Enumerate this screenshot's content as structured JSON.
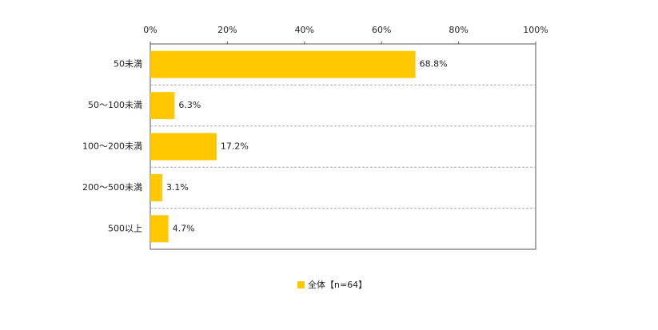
{
  "chart_data": {
    "type": "bar",
    "orientation": "horizontal",
    "categories": [
      "50未満",
      "50～100未満",
      "100～200未満",
      "200～500未満",
      "500以上"
    ],
    "series": [
      {
        "name": "全体【n=64】",
        "color": "#ffc800",
        "values": [
          68.8,
          6.3,
          17.2,
          3.1,
          4.7
        ],
        "value_labels": [
          "68.8%",
          "6.3%",
          "17.2%",
          "3.1%",
          "4.7%"
        ]
      }
    ],
    "xlim": [
      0,
      100
    ],
    "xticks": [
      {
        "value": 0,
        "label": "0%"
      },
      {
        "value": 20,
        "label": "20%"
      },
      {
        "value": 40,
        "label": "40%"
      },
      {
        "value": 60,
        "label": "60%"
      },
      {
        "value": 80,
        "label": "80%"
      },
      {
        "value": 100,
        "label": "100%"
      }
    ],
    "legend": "bottom"
  }
}
